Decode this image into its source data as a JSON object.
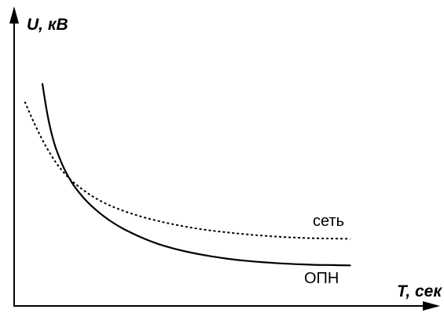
{
  "chart_data": {
    "type": "line",
    "title": "",
    "xlabel": "T, сек",
    "ylabel": "U, кВ",
    "xlim": [
      0,
      100
    ],
    "ylim": [
      0,
      100
    ],
    "grid": false,
    "series": [
      {
        "name": "сеть",
        "style": "dotted",
        "x": [
          3,
          6,
          9,
          12,
          15,
          18,
          22,
          26,
          30,
          35,
          40,
          45,
          50,
          55,
          60,
          65,
          70,
          75,
          80,
          85,
          90,
          95
        ],
        "y": [
          68.5,
          60.5,
          53.5,
          47.8,
          43.5,
          40.3,
          36.9,
          34.3,
          32.3,
          30.3,
          28.7,
          27.4,
          26.3,
          25.4,
          24.7,
          24.1,
          23.6,
          23.2,
          22.9,
          22.7,
          22.6,
          22.5
        ]
      },
      {
        "name": "ОПН",
        "style": "solid",
        "x": [
          8,
          9,
          10,
          11,
          12,
          14,
          16,
          18,
          20,
          22,
          25,
          28,
          31,
          35,
          40,
          45,
          50,
          55,
          60,
          65,
          70,
          75,
          80,
          85,
          90,
          95
        ],
        "y": [
          74.5,
          67.0,
          60.8,
          56.0,
          52.2,
          46.4,
          42.0,
          38.6,
          35.8,
          33.4,
          30.4,
          27.9,
          25.8,
          23.5,
          21.1,
          19.3,
          17.9,
          16.8,
          15.9,
          15.2,
          14.7,
          14.3,
          14.0,
          13.8,
          13.7,
          13.6
        ]
      }
    ]
  }
}
